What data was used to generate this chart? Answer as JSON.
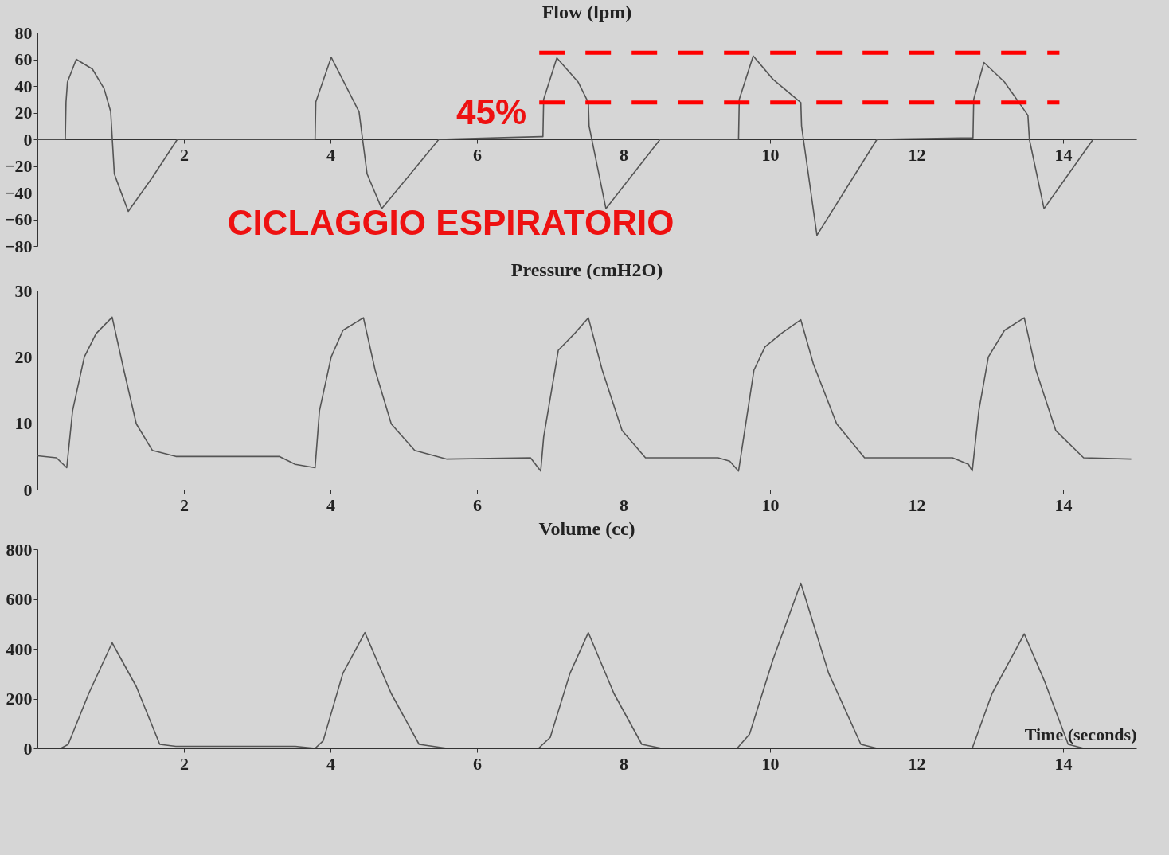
{
  "chart_data": [
    {
      "type": "line",
      "title": "Flow (lpm)",
      "xlim": [
        0,
        15
      ],
      "xticks": [
        2,
        4,
        6,
        8,
        10,
        12,
        14
      ],
      "ylim": [
        -80,
        80
      ],
      "yticks": [
        -80,
        -60,
        -40,
        -20,
        0,
        20,
        40,
        60,
        80
      ],
      "grid": false,
      "annotations": [
        "CICLAGGIO ESPIRATORIO",
        "45%"
      ],
      "series": [
        {
          "color": "#555555",
          "x": [
            0,
            0.38,
            0.39,
            0.41,
            0.53,
            0.75,
            0.91,
            1.0,
            1.05,
            1.13,
            1.24,
            1.57,
            1.91,
            3.79,
            3.8,
            4.01,
            4.39,
            4.5,
            4.7,
            5.48,
            6.87,
            6.9,
            6.91,
            7.09,
            7.38,
            7.52,
            7.53,
            7.76,
            8.5,
            9.57,
            9.58,
            9.77,
            10.04,
            10.42,
            10.43,
            10.64,
            11.46,
            12.6,
            12.77,
            12.78,
            12.92,
            13.2,
            13.52,
            13.54,
            13.74,
            14.41,
            15
          ],
          "values": [
            0,
            0,
            28,
            43,
            60,
            52.7,
            38,
            20.7,
            -26,
            -38,
            -54,
            -28.5,
            0,
            0,
            28,
            61.5,
            20.7,
            -26,
            -52,
            0,
            2,
            2,
            30,
            61,
            43,
            27.6,
            10,
            -52,
            0,
            0,
            30,
            62.5,
            45,
            27.6,
            10,
            -72,
            0,
            1,
            1,
            30,
            57.6,
            43,
            18,
            0,
            -52,
            0,
            0
          ]
        },
        {
          "color": "#ff0000",
          "line_style": "dashed",
          "x": [
            6.85,
            13.95
          ],
          "values": [
            65,
            65
          ]
        },
        {
          "color": "#ff0000",
          "line_style": "dashed",
          "x": [
            6.85,
            13.95
          ],
          "values": [
            27.6,
            27.6
          ]
        }
      ]
    },
    {
      "type": "line",
      "title": "Pressure (cmH2O)",
      "xlim": [
        0,
        15
      ],
      "xticks": [
        2,
        4,
        6,
        8,
        10,
        12,
        14
      ],
      "ylim": [
        0,
        30
      ],
      "yticks": [
        0,
        10,
        20,
        30
      ],
      "grid": false,
      "series": [
        {
          "color": "#555555",
          "x": [
            0,
            0.26,
            0.4,
            0.48,
            0.64,
            0.8,
            1.02,
            1.18,
            1.35,
            1.57,
            1.89,
            3.3,
            3.52,
            3.79,
            3.85,
            4.01,
            4.17,
            4.45,
            4.61,
            4.83,
            5.15,
            5.59,
            6.73,
            6.87,
            6.91,
            7.11,
            7.33,
            7.52,
            7.71,
            7.98,
            8.3,
            9.29,
            9.45,
            9.57,
            9.78,
            9.93,
            10.15,
            10.42,
            10.59,
            10.91,
            11.29,
            12.49,
            12.71,
            12.76,
            12.85,
            12.98,
            13.2,
            13.47,
            13.63,
            13.9,
            14.28,
            14.93
          ],
          "values": [
            5.1,
            4.8,
            3.3,
            11.9,
            20,
            23.5,
            26,
            18,
            9.9,
            5.9,
            5,
            5,
            3.8,
            3.3,
            11.9,
            20,
            24,
            25.9,
            18,
            9.9,
            5.9,
            4.6,
            4.8,
            2.8,
            7.9,
            21,
            23.5,
            25.9,
            18,
            8.9,
            4.8,
            4.8,
            4.3,
            2.8,
            18,
            21.5,
            23.5,
            25.6,
            19,
            9.9,
            4.8,
            4.8,
            3.8,
            2.8,
            11.9,
            20,
            24,
            25.9,
            18,
            8.9,
            4.8,
            4.6
          ]
        }
      ]
    },
    {
      "type": "line",
      "title": "Volume (cc)",
      "xlabel": "Time (seconds)",
      "xlim": [
        0,
        15
      ],
      "xticks": [
        2,
        4,
        6,
        8,
        10,
        12,
        14
      ],
      "ylim": [
        0,
        800
      ],
      "yticks": [
        0,
        200,
        400,
        600,
        800
      ],
      "grid": false,
      "series": [
        {
          "color": "#555555",
          "x": [
            0,
            0.32,
            0.42,
            0.7,
            1.02,
            1.35,
            1.67,
            1.89,
            3.52,
            3.79,
            3.9,
            4.17,
            4.47,
            4.83,
            5.21,
            5.59,
            6.84,
            7.0,
            7.27,
            7.52,
            7.87,
            8.25,
            8.52,
            9.55,
            9.72,
            10.04,
            10.42,
            10.8,
            11.24,
            11.46,
            12.76,
            13.03,
            13.47,
            13.74,
            14.07,
            14.28,
            15
          ],
          "values": [
            0,
            0,
            16,
            220,
            424,
            248,
            16,
            8,
            8,
            0,
            30,
            302,
            465,
            220,
            16,
            0,
            0,
            44,
            302,
            465,
            220,
            16,
            0,
            0,
            57,
            357,
            664,
            302,
            16,
            0,
            0,
            220,
            460,
            275,
            16,
            0,
            0
          ]
        }
      ]
    }
  ]
}
